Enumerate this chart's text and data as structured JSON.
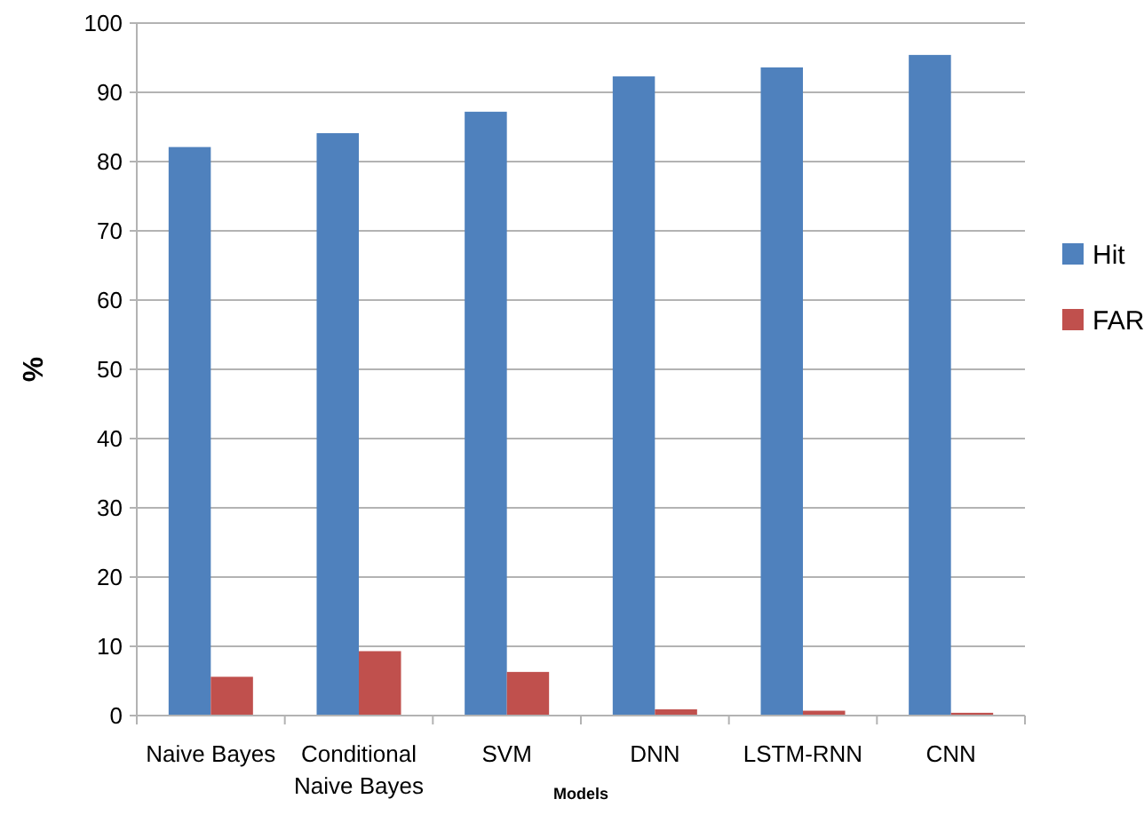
{
  "chart_data": {
    "type": "bar",
    "xlabel": "Models",
    "ylabel": "%",
    "categories": [
      "Naive Bayes",
      "Conditional Naive Bayes",
      "SVM",
      "DNN",
      "LSTM-RNN",
      "CNN"
    ],
    "series": [
      {
        "name": "Hit",
        "color": "#4f81bd",
        "values": [
          82.1,
          84.1,
          87.2,
          92.3,
          93.6,
          95.4
        ]
      },
      {
        "name": "FAR",
        "color": "#c0504d",
        "values": [
          5.6,
          9.3,
          6.3,
          0.9,
          0.7,
          0.4
        ]
      }
    ],
    "ylim": [
      0,
      100
    ],
    "yticks": [
      0,
      10,
      20,
      30,
      40,
      50,
      60,
      70,
      80,
      90,
      100
    ],
    "grid": "y",
    "legend": "right"
  }
}
